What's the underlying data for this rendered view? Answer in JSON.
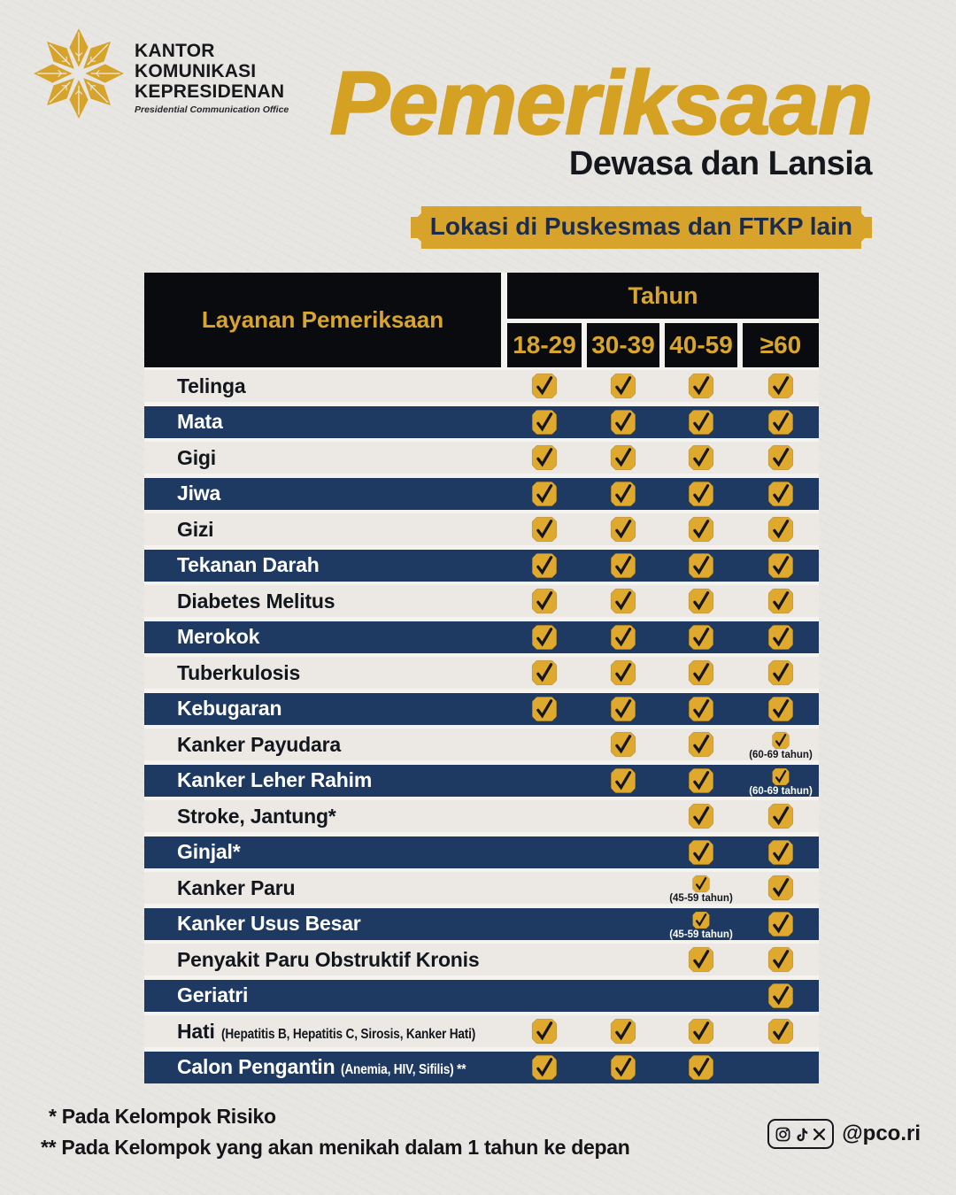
{
  "logo": {
    "org": [
      "KANTOR",
      "KOMUNIKASI",
      "KEPRESIDENAN"
    ],
    "org_sub": "Presidential Communication Office"
  },
  "header": {
    "title": "Pemeriksaan",
    "subtitle": "Dewasa dan Lansia",
    "location_badge": "Lokasi di Puskesmas dan FTKP lain"
  },
  "table": {
    "service_column_header": "Layanan Pemeriksaan",
    "age_group_header": "Tahun",
    "age_columns": [
      "18-29",
      "30-39",
      "40-59",
      "≥60"
    ],
    "rows": [
      {
        "label": "Telinga",
        "checks": [
          "yes",
          "yes",
          "yes",
          "yes"
        ]
      },
      {
        "label": "Mata",
        "checks": [
          "yes",
          "yes",
          "yes",
          "yes"
        ]
      },
      {
        "label": "Gigi",
        "checks": [
          "yes",
          "yes",
          "yes",
          "yes"
        ]
      },
      {
        "label": "Jiwa",
        "checks": [
          "yes",
          "yes",
          "yes",
          "yes"
        ]
      },
      {
        "label": "Gizi",
        "checks": [
          "yes",
          "yes",
          "yes",
          "yes"
        ]
      },
      {
        "label": "Tekanan Darah",
        "checks": [
          "yes",
          "yes",
          "yes",
          "yes"
        ]
      },
      {
        "label": "Diabetes Melitus",
        "checks": [
          "yes",
          "yes",
          "yes",
          "yes"
        ]
      },
      {
        "label": "Merokok",
        "checks": [
          "yes",
          "yes",
          "yes",
          "yes"
        ]
      },
      {
        "label": "Tuberkulosis",
        "checks": [
          "yes",
          "yes",
          "yes",
          "yes"
        ]
      },
      {
        "label": "Kebugaran",
        "checks": [
          "yes",
          "yes",
          "yes",
          "yes"
        ]
      },
      {
        "label": "Kanker Payudara",
        "checks": [
          "no",
          "yes",
          "yes",
          {
            "note": "(60-69 tahun)"
          }
        ]
      },
      {
        "label": "Kanker Leher Rahim",
        "checks": [
          "no",
          "yes",
          "yes",
          {
            "note": "(60-69 tahun)"
          }
        ]
      },
      {
        "label": "Stroke, Jantung*",
        "checks": [
          "no",
          "no",
          "yes",
          "yes"
        ]
      },
      {
        "label": "Ginjal*",
        "checks": [
          "no",
          "no",
          "yes",
          "yes"
        ]
      },
      {
        "label": "Kanker Paru",
        "checks": [
          "no",
          "no",
          {
            "note": "(45-59 tahun)"
          },
          "yes"
        ]
      },
      {
        "label": "Kanker Usus Besar",
        "checks": [
          "no",
          "no",
          {
            "note": "(45-59 tahun)"
          },
          "yes"
        ]
      },
      {
        "label": "Penyakit Paru Obstruktif Kronis",
        "checks": [
          "no",
          "no",
          "yes",
          "yes"
        ]
      },
      {
        "label": "Geriatri",
        "checks": [
          "no",
          "no",
          "no",
          "yes"
        ]
      },
      {
        "label": "Hati",
        "sublabel": "(Hepatitis B, Hepatitis C, Sirosis, Kanker Hati)",
        "checks": [
          "yes",
          "yes",
          "yes",
          "yes"
        ]
      },
      {
        "label": "Calon Pengantin",
        "sublabel": "(Anemia, HIV, Sifilis) **",
        "checks": [
          "yes",
          "yes",
          "yes",
          "no"
        ]
      }
    ]
  },
  "footnotes": [
    "* Pada Kelompok Risiko",
    "** Pada Kelompok yang akan menikah dalam 1 tahun ke depan"
  ],
  "footer": {
    "social_handle": "@pco.ri",
    "social_icons": [
      "instagram-icon",
      "tiktok-icon",
      "x-icon"
    ]
  },
  "colors": {
    "gold": "#D8A62E",
    "navy_row": "#1E3A63",
    "light_row": "#ECE9E4",
    "header_black": "#0A0B0E",
    "text_dark": "#12161D"
  }
}
